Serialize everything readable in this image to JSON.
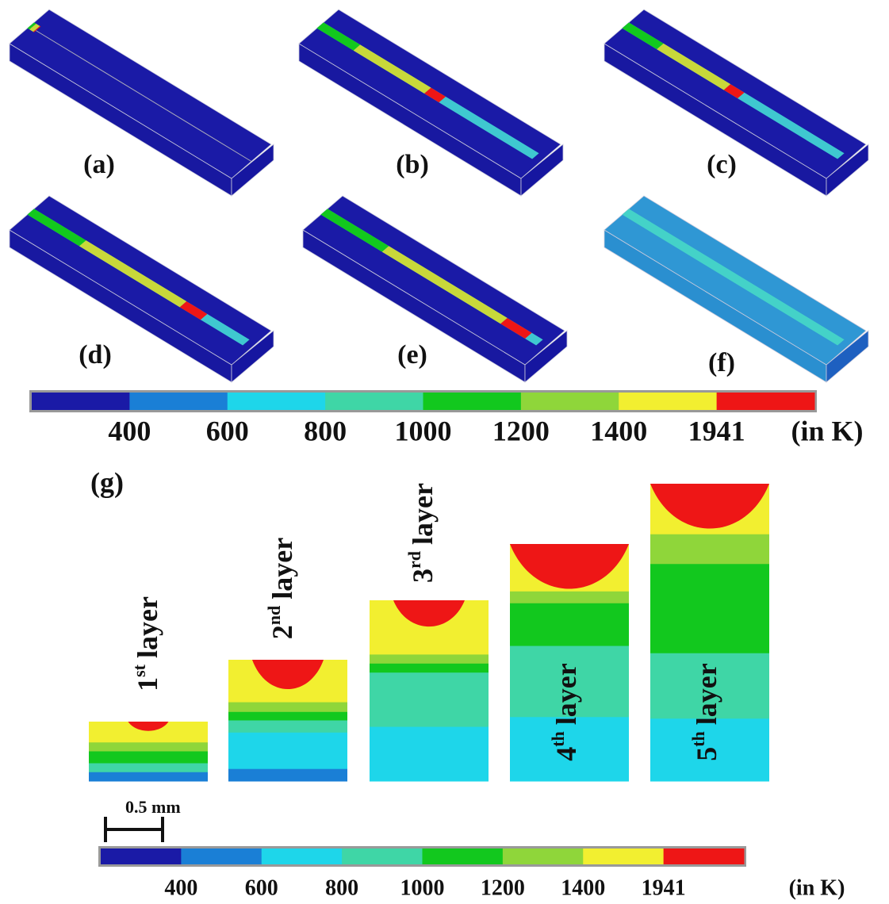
{
  "panels": [
    {
      "label": "(a)"
    },
    {
      "label": "(b)"
    },
    {
      "label": "(c)"
    },
    {
      "label": "(d)"
    },
    {
      "label": "(e)"
    },
    {
      "label": "(f)"
    }
  ],
  "colorbar_top": {
    "colors": [
      "#1a1aa6",
      "#1a7fd6",
      "#1ed6ea",
      "#3fd6a6",
      "#12c81e",
      "#8fd63a",
      "#f2ef30",
      "#ee1616"
    ],
    "labels": [
      400,
      600,
      800,
      1000,
      1200,
      1400,
      1941
    ],
    "unit": "(in K)"
  },
  "section": {
    "label": "(g)",
    "layers": [
      {
        "ordinal": "1",
        "suffix": "st",
        "word": "layer"
      },
      {
        "ordinal": "2",
        "suffix": "nd",
        "word": "layer"
      },
      {
        "ordinal": "3",
        "suffix": "rd",
        "word": "layer"
      },
      {
        "ordinal": "4",
        "suffix": "th",
        "word": "layer"
      },
      {
        "ordinal": "5",
        "suffix": "th",
        "word": "layer"
      }
    ],
    "scale_bar": "0.5 mm"
  },
  "colorbar_bottom": {
    "colors": [
      "#1a1aa6",
      "#1a7fd6",
      "#1ed6ea",
      "#3fd6a6",
      "#12c81e",
      "#8fd63a",
      "#f2ef30",
      "#ee1616"
    ],
    "labels": [
      400,
      600,
      800,
      1000,
      1200,
      1400,
      1941
    ],
    "unit": "(in K)"
  }
}
